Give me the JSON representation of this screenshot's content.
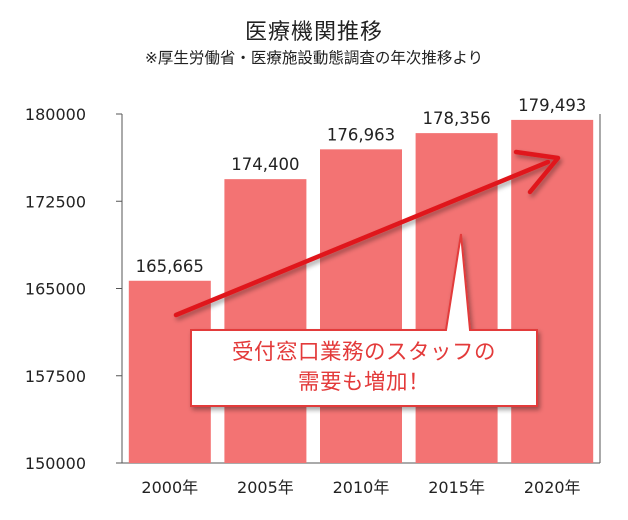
{
  "chart_data": {
    "type": "bar",
    "title": "医療機関推移",
    "subtitle": "※厚生労働省・医療施設動態調査の年次推移より",
    "categories": [
      "2000年",
      "2005年",
      "2010年",
      "2015年",
      "2020年"
    ],
    "values": [
      165665,
      174400,
      176963,
      178356,
      179493
    ],
    "value_labels": [
      "165,665",
      "174,400",
      "176,963",
      "178,356",
      "179,493"
    ],
    "yticks": [
      "150000",
      "157500",
      "165000",
      "172500",
      "180000"
    ],
    "ylim": [
      150000,
      180000
    ],
    "xlabel": "",
    "ylabel": "",
    "grid": false,
    "bar_color": "#f37373",
    "annotation": {
      "line1": "受付窓口業務のスタッフの",
      "line2": "需要も増加！",
      "text_color": "#e33a3a",
      "arrow_color": "#e0171a"
    }
  }
}
